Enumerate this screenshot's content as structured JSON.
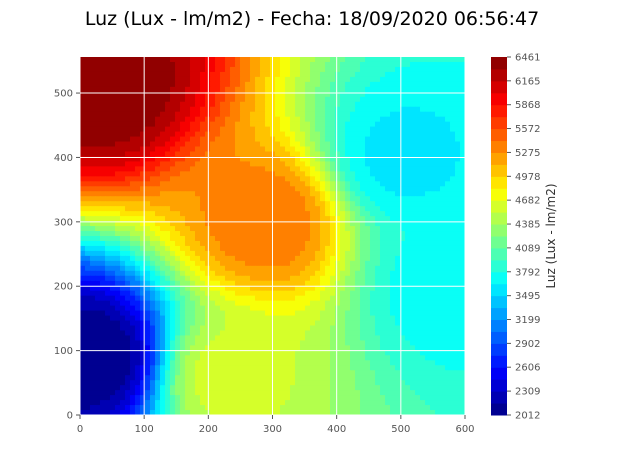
{
  "title": "Luz (Lux - lm/m2) - Fecha: 18/09/2020 06:56:47",
  "chart_data": {
    "type": "heatmap",
    "subtype": "filled-contour",
    "colormap": "jet",
    "title": "Luz (Lux - lm/m2) - Fecha: 18/09/2020 06:56:47",
    "xlabel": "",
    "ylabel": "",
    "xlim": [
      0,
      600
    ],
    "ylim": [
      0,
      556
    ],
    "x_ticks": [
      "0",
      "100",
      "200",
      "300",
      "400",
      "500",
      "600"
    ],
    "y_ticks": [
      "0",
      "100",
      "200",
      "300",
      "400",
      "500"
    ],
    "grid": true,
    "colorbar": {
      "label": "Luz (Lux - lm/m2)",
      "min": 2012,
      "max": 6461,
      "levels": 30,
      "ticks": [
        "2012",
        "2309",
        "2606",
        "2902",
        "3199",
        "3495",
        "3792",
        "4089",
        "4385",
        "4682",
        "4978",
        "5275",
        "5572",
        "5868",
        "6165",
        "6461"
      ]
    },
    "field_samples": [
      {
        "x": 20,
        "y": 90,
        "value": 2012
      },
      {
        "x": 40,
        "y": 510,
        "value": 6461
      },
      {
        "x": 290,
        "y": 300,
        "value": 5400
      },
      {
        "x": 230,
        "y": 60,
        "value": 4600
      },
      {
        "x": 500,
        "y": 400,
        "value": 3600
      },
      {
        "x": 570,
        "y": 200,
        "value": 3700
      }
    ]
  }
}
